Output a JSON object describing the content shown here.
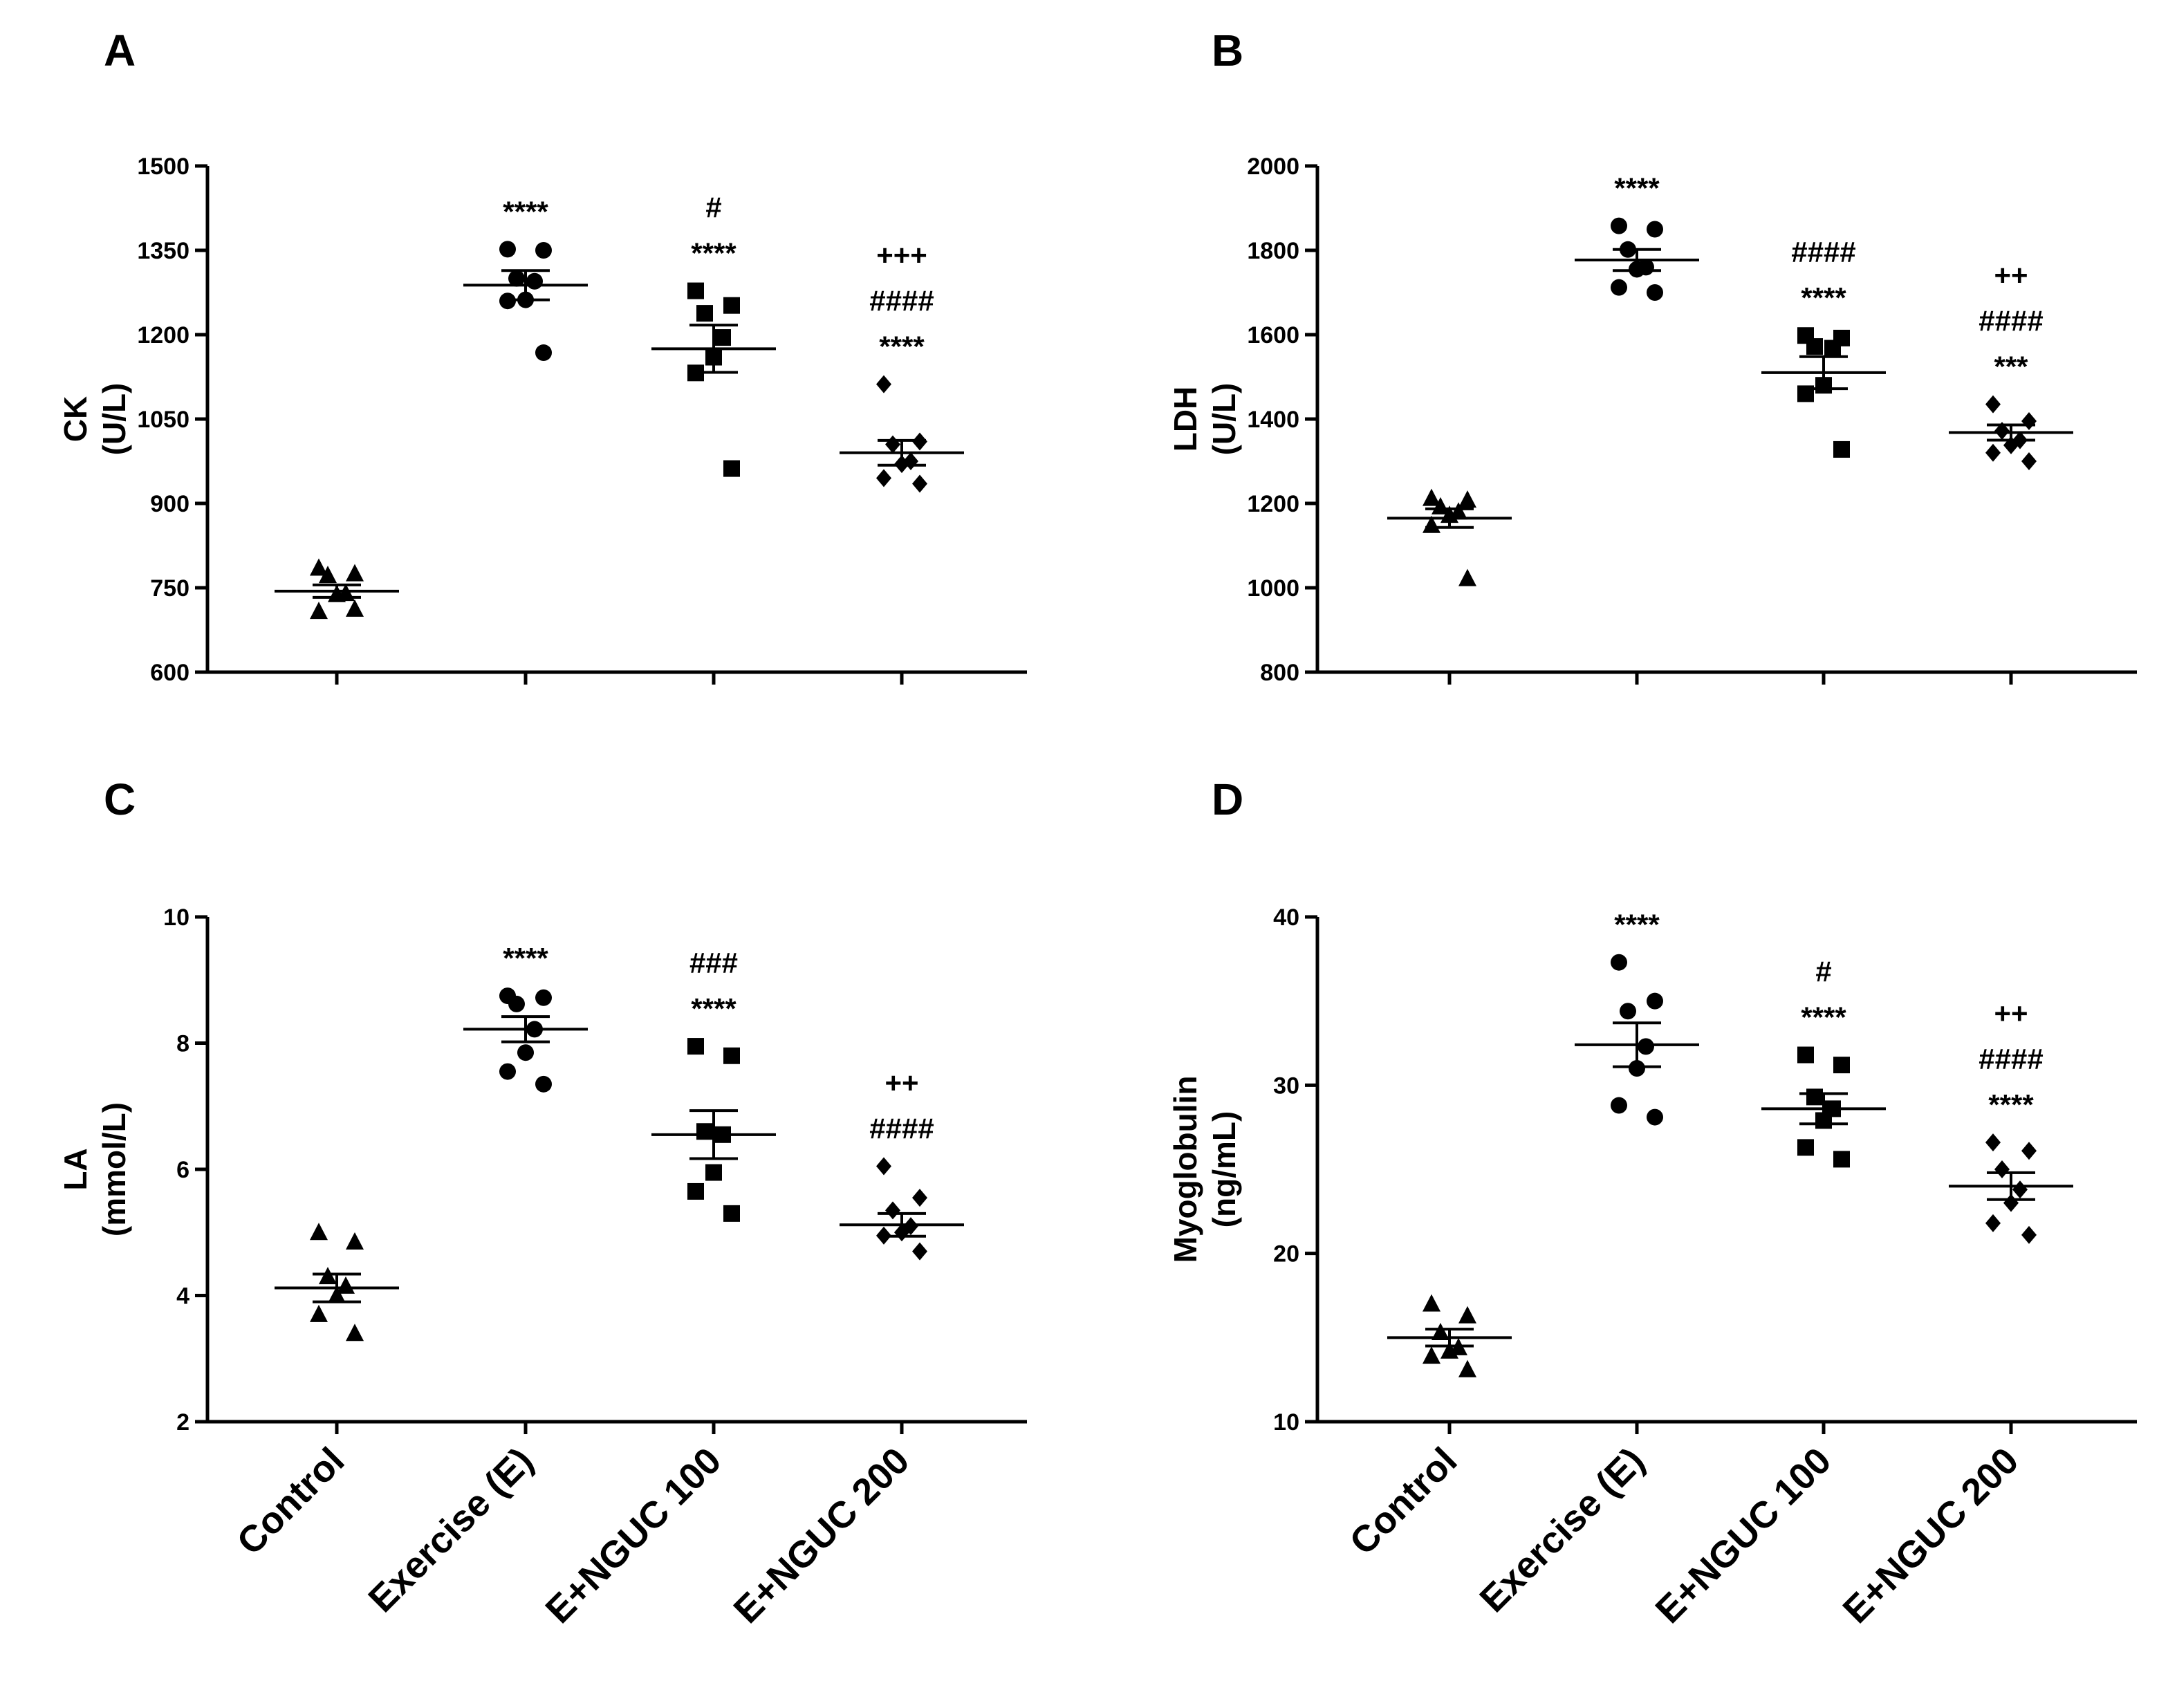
{
  "chart_data": [
    {
      "panel": "A",
      "type": "scatter",
      "ylabel_line1": "CK",
      "ylabel_line2": "(U/L)",
      "ylim": [
        600,
        1500
      ],
      "yticks": [
        600,
        750,
        900,
        1050,
        1200,
        1350,
        1500
      ],
      "categories": [
        "Control",
        "Exercise (E)",
        "E+NGUC 100",
        "E+NGUC 200"
      ],
      "show_category_labels": false,
      "groups": [
        {
          "marker": "triangle",
          "points": [
            785,
            775,
            772,
            740,
            738,
            708,
            712
          ],
          "mean": 744,
          "sem": 11,
          "annotations": []
        },
        {
          "marker": "circle",
          "points": [
            1352,
            1350,
            1300,
            1295,
            1262,
            1260,
            1168
          ],
          "mean": 1288,
          "sem": 26,
          "annotations": [
            "****"
          ]
        },
        {
          "marker": "square",
          "points": [
            1278,
            1252,
            1238,
            1195,
            1160,
            1132,
            962
          ],
          "mean": 1175,
          "sem": 42,
          "annotations": [
            "****",
            "#"
          ]
        },
        {
          "marker": "diamond",
          "points": [
            1112,
            1010,
            1005,
            975,
            970,
            945,
            935
          ],
          "mean": 990,
          "sem": 22,
          "annotations": [
            "****",
            "####",
            "+++"
          ]
        }
      ]
    },
    {
      "panel": "B",
      "type": "scatter",
      "ylabel_line1": "LDH",
      "ylabel_line2": "(U/L)",
      "ylim": [
        800,
        2000
      ],
      "yticks": [
        800,
        1000,
        1200,
        1400,
        1600,
        1800,
        2000
      ],
      "categories": [
        "Control",
        "Exercise (E)",
        "E+NGUC 100",
        "E+NGUC 200"
      ],
      "show_category_labels": false,
      "groups": [
        {
          "marker": "triangle",
          "points": [
            1212,
            1208,
            1192,
            1180,
            1172,
            1148,
            1022
          ],
          "mean": 1165,
          "sem": 22,
          "annotations": []
        },
        {
          "marker": "circle",
          "points": [
            1858,
            1850,
            1802,
            1760,
            1755,
            1712,
            1700
          ],
          "mean": 1777,
          "sem": 25,
          "annotations": [
            "****"
          ]
        },
        {
          "marker": "square",
          "points": [
            1598,
            1592,
            1572,
            1568,
            1480,
            1460,
            1328
          ],
          "mean": 1510,
          "sem": 38,
          "annotations": [
            "****",
            "####"
          ]
        },
        {
          "marker": "diamond",
          "points": [
            1435,
            1395,
            1372,
            1350,
            1338,
            1320,
            1300
          ],
          "mean": 1368,
          "sem": 18,
          "annotations": [
            "***",
            "####",
            "++"
          ]
        }
      ]
    },
    {
      "panel": "C",
      "type": "scatter",
      "ylabel_line1": "LA",
      "ylabel_line2": "(mmol/L)",
      "ylim": [
        2,
        10
      ],
      "yticks": [
        2,
        4,
        6,
        8,
        10
      ],
      "categories": [
        "Control",
        "Exercise (E)",
        "E+NGUC 100",
        "E+NGUC 200"
      ],
      "show_category_labels": true,
      "groups": [
        {
          "marker": "triangle",
          "points": [
            5.0,
            4.85,
            4.3,
            4.15,
            4.0,
            3.7,
            3.4
          ],
          "mean": 4.12,
          "sem": 0.22,
          "annotations": []
        },
        {
          "marker": "circle",
          "points": [
            8.75,
            8.72,
            8.62,
            8.22,
            7.85,
            7.55,
            7.35
          ],
          "mean": 8.22,
          "sem": 0.2,
          "annotations": [
            "****"
          ]
        },
        {
          "marker": "square",
          "points": [
            7.95,
            7.8,
            6.6,
            6.55,
            5.95,
            5.65,
            5.3
          ],
          "mean": 6.55,
          "sem": 0.38,
          "annotations": [
            "****",
            "###"
          ]
        },
        {
          "marker": "diamond",
          "points": [
            6.05,
            5.55,
            5.35,
            5.1,
            5.0,
            4.95,
            4.7
          ],
          "mean": 5.12,
          "sem": 0.18,
          "annotations": [
            "####",
            "++"
          ]
        }
      ]
    },
    {
      "panel": "D",
      "type": "scatter",
      "ylabel_line1": "Myoglobulin",
      "ylabel_line2": "(ng/mL)",
      "ylim": [
        10,
        40
      ],
      "yticks": [
        10,
        20,
        30,
        40
      ],
      "categories": [
        "Control",
        "Exercise (E)",
        "E+NGUC 100",
        "E+NGUC 200"
      ],
      "show_category_labels": true,
      "groups": [
        {
          "marker": "triangle",
          "points": [
            17.0,
            16.3,
            15.3,
            14.4,
            14.2,
            13.9,
            13.1
          ],
          "mean": 15.0,
          "sem": 0.5,
          "annotations": []
        },
        {
          "marker": "circle",
          "points": [
            37.3,
            35.0,
            34.4,
            32.3,
            31.0,
            28.8,
            28.1
          ],
          "mean": 32.4,
          "sem": 1.3,
          "annotations": [
            "****"
          ]
        },
        {
          "marker": "square",
          "points": [
            31.8,
            31.2,
            29.3,
            28.6,
            27.9,
            26.3,
            25.6
          ],
          "mean": 28.6,
          "sem": 0.9,
          "annotations": [
            "****",
            "#"
          ]
        },
        {
          "marker": "diamond",
          "points": [
            26.6,
            26.1,
            25.0,
            23.8,
            23.0,
            21.8,
            21.1
          ],
          "mean": 24.0,
          "sem": 0.8,
          "annotations": [
            "****",
            "####",
            "++"
          ]
        }
      ]
    }
  ]
}
